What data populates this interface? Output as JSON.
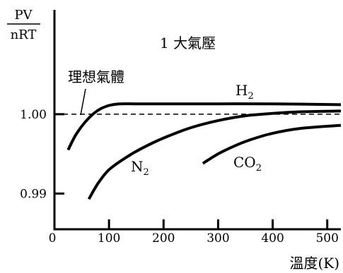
{
  "chart_data": {
    "type": "line",
    "title": "1 大氣壓",
    "xlabel": "溫度(K)",
    "ylabel_numerator": "PV",
    "ylabel_denominator": "nRT",
    "xlim": [
      0,
      525
    ],
    "ylim": [
      0.9855,
      1.0135
    ],
    "x_ticks": [
      0,
      100,
      200,
      300,
      400,
      500
    ],
    "y_ticks": [
      0.99,
      1.0
    ],
    "y_tick_labels": [
      "0.99",
      "1.00"
    ],
    "grid": false,
    "ideal": {
      "name": "理想氣體",
      "y": 1.0
    },
    "series": [
      {
        "name": "H",
        "subscript": "2",
        "x": [
          25,
          40,
          60,
          80,
          100,
          120,
          150,
          200,
          300,
          400,
          525
        ],
        "y": [
          0.9955,
          0.9975,
          0.9993,
          1.0005,
          1.0011,
          1.0013,
          1.0013,
          1.0013,
          1.0013,
          1.0013,
          1.0012
        ]
      },
      {
        "name": "N",
        "subscript": "2",
        "x": [
          63,
          80,
          100,
          130,
          160,
          200,
          250,
          300,
          350,
          400,
          450,
          525
        ],
        "y": [
          0.9893,
          0.9913,
          0.993,
          0.9945,
          0.9957,
          0.997,
          0.9983,
          0.9992,
          0.9998,
          1.0001,
          1.0003,
          1.0004
        ]
      },
      {
        "name": "CO",
        "subscript": "2",
        "x": [
          272,
          300,
          330,
          360,
          400,
          450,
          525
        ],
        "y": [
          0.9938,
          0.995,
          0.996,
          0.9968,
          0.9976,
          0.9982,
          0.9986
        ]
      }
    ]
  }
}
